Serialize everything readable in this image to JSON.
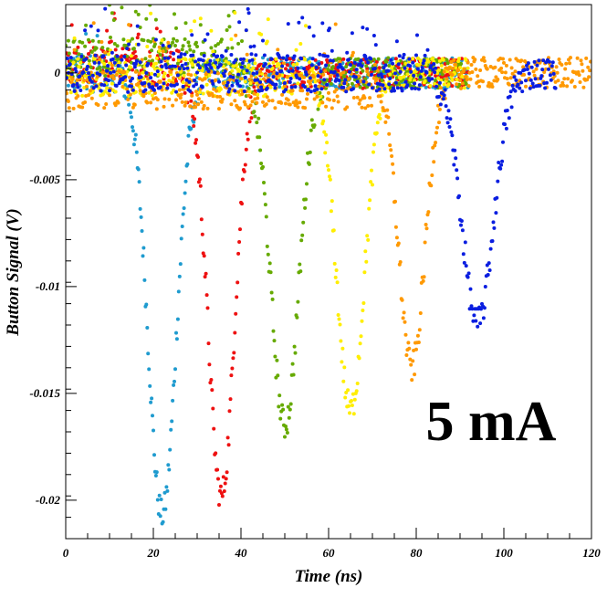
{
  "chart_data": {
    "type": "scatter",
    "title": "",
    "xlabel": "Time (ns)",
    "ylabel": "Button Signal (V)",
    "xlim": [
      0,
      120
    ],
    "ylim": [
      -0.0218,
      0.0032
    ],
    "x_ticks": [
      0,
      20,
      40,
      60,
      80,
      100,
      120
    ],
    "x_tick_labels": [
      "0",
      "20",
      "40",
      "60",
      "80",
      "100",
      "120"
    ],
    "y_ticks": [
      0,
      -0.005,
      -0.01,
      -0.015,
      -0.02
    ],
    "y_tick_labels": [
      "0",
      "-0.005",
      "-0.01",
      "-0.015",
      "-0.02"
    ],
    "grid": false,
    "annotation": "5 mA",
    "series": [
      {
        "color": "#1f9bcf",
        "pulse_center": 22,
        "pulse_min": -0.0207,
        "pulse_width": 3.2,
        "data_range": [
          0,
          92
        ],
        "baseline": 0.0
      },
      {
        "color": "#ee1111",
        "pulse_center": 35.5,
        "pulse_min": -0.0198,
        "pulse_width": 3.0,
        "data_range": [
          0,
          92
        ],
        "baseline": 0.0003
      },
      {
        "color": "#66aa00",
        "pulse_center": 50,
        "pulse_min": -0.0165,
        "pulse_width": 3.2,
        "data_range": [
          0,
          92
        ],
        "baseline": 0.0007
      },
      {
        "color": "#ffee00",
        "pulse_center": 65,
        "pulse_min": -0.0158,
        "pulse_width": 3.2,
        "data_range": [
          0,
          92
        ],
        "baseline": -0.0002
      },
      {
        "color": "#ff9900",
        "pulse_center": 79,
        "pulse_min": -0.0138,
        "pulse_width": 3.0,
        "data_range": [
          0,
          120
        ],
        "baseline": -0.0008
      },
      {
        "color": "#0a1ee0",
        "pulse_center": 94,
        "pulse_min": -0.0117,
        "pulse_width": 3.6,
        "data_range": [
          0,
          112
        ],
        "baseline": 0.0
      }
    ]
  }
}
